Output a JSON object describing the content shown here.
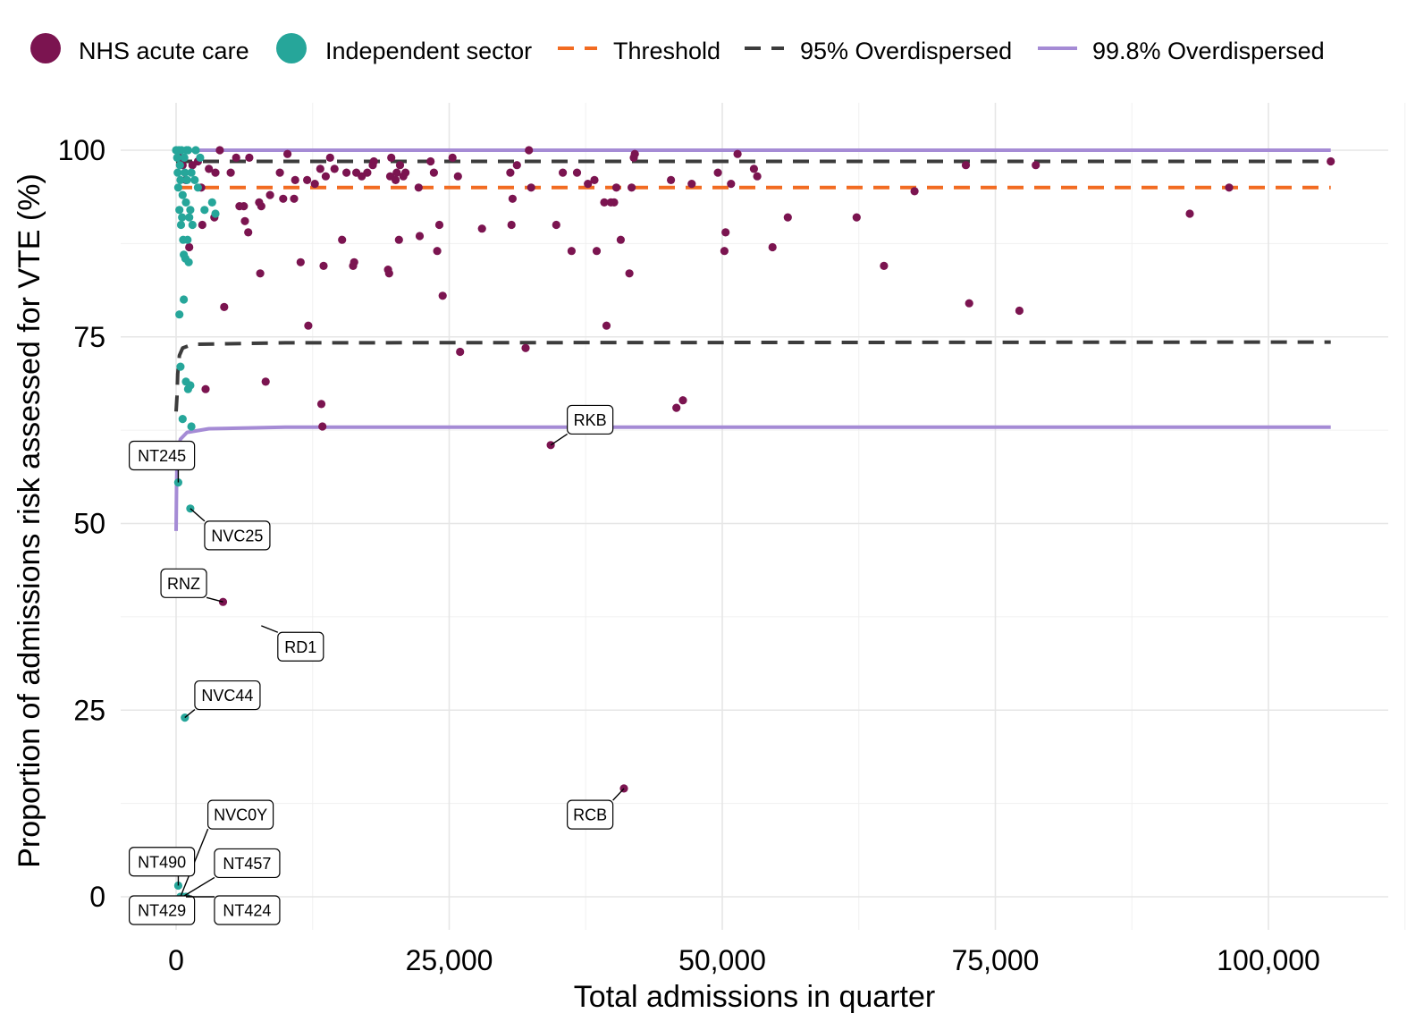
{
  "chart_data": {
    "type": "scatter",
    "xlabel": "Total admissions in quarter",
    "ylabel": "Proportion of admissions risk assessed for VTE (%)",
    "xlim": [
      -5000,
      110000
    ],
    "ylim": [
      -5,
      105
    ],
    "xticks": [
      0,
      25000,
      50000,
      75000,
      100000
    ],
    "xtick_labels": [
      "0",
      "25,000",
      "50,000",
      "75,000",
      "100,000"
    ],
    "yticks": [
      0,
      25,
      50,
      75,
      100
    ],
    "ytick_labels": [
      "0",
      "25",
      "50",
      "75",
      "100"
    ],
    "grid": true,
    "legend_position": "top",
    "legend": [
      {
        "key": "nhs",
        "label": "NHS acute care",
        "kind": "point",
        "color": "#7b1450"
      },
      {
        "key": "ind",
        "label": "Independent sector",
        "kind": "point",
        "color": "#26a69a"
      },
      {
        "key": "threshold",
        "label": "Threshold",
        "kind": "dashed",
        "color": "#f26b21"
      },
      {
        "key": "od95",
        "label": "95% Overdispersed",
        "kind": "dashed",
        "color": "#3c3c3c"
      },
      {
        "key": "od998",
        "label": "99.8% Overdispersed",
        "kind": "solid",
        "color": "#a58bd5"
      }
    ],
    "series": [
      {
        "key": "nhs",
        "color": "#7b1450",
        "points": [
          [
            300,
            99
          ],
          [
            600,
            98
          ],
          [
            900,
            96
          ],
          [
            1200,
            87
          ],
          [
            1500,
            98
          ],
          [
            2000,
            98.5
          ],
          [
            2300,
            95
          ],
          [
            2400,
            90
          ],
          [
            2700,
            68
          ],
          [
            3000,
            97.5
          ],
          [
            3500,
            91
          ],
          [
            3600,
            97
          ],
          [
            4000,
            100
          ],
          [
            4300,
            39.5
          ],
          [
            4400,
            79
          ],
          [
            5000,
            97
          ],
          [
            5500,
            99
          ],
          [
            5800,
            92.5
          ],
          [
            6200,
            92.5
          ],
          [
            6300,
            90.5
          ],
          [
            6600,
            89
          ],
          [
            6700,
            99
          ],
          [
            7600,
            93
          ],
          [
            7700,
            83.5
          ],
          [
            7800,
            92.5
          ],
          [
            8200,
            69
          ],
          [
            8600,
            94
          ],
          [
            9500,
            97
          ],
          [
            9800,
            93.5
          ],
          [
            10200,
            99.5
          ],
          [
            10800,
            93.5
          ],
          [
            10900,
            96
          ],
          [
            11400,
            85
          ],
          [
            12000,
            96
          ],
          [
            12100,
            76.5
          ],
          [
            12700,
            95.5
          ],
          [
            13200,
            97.5
          ],
          [
            13300,
            66
          ],
          [
            13400,
            63
          ],
          [
            13500,
            84.5
          ],
          [
            13700,
            96.5
          ],
          [
            14100,
            99
          ],
          [
            14500,
            97.5
          ],
          [
            15200,
            88
          ],
          [
            15600,
            97
          ],
          [
            16200,
            84.5
          ],
          [
            16300,
            85
          ],
          [
            16500,
            97
          ],
          [
            17000,
            96.5
          ],
          [
            17500,
            97
          ],
          [
            18000,
            98
          ],
          [
            18100,
            98.5
          ],
          [
            19400,
            84
          ],
          [
            19500,
            83.5
          ],
          [
            19600,
            96.5
          ],
          [
            19700,
            99
          ],
          [
            20100,
            96
          ],
          [
            20200,
            97
          ],
          [
            20400,
            88
          ],
          [
            20500,
            98
          ],
          [
            20800,
            96.5
          ],
          [
            21000,
            97
          ],
          [
            22200,
            95
          ],
          [
            22300,
            88.5
          ],
          [
            23300,
            98.5
          ],
          [
            23600,
            97
          ],
          [
            23900,
            86.5
          ],
          [
            24100,
            90
          ],
          [
            24400,
            80.5
          ],
          [
            25300,
            99
          ],
          [
            25800,
            96.5
          ],
          [
            26000,
            73
          ],
          [
            28000,
            89.5
          ],
          [
            30600,
            97
          ],
          [
            30700,
            90
          ],
          [
            30800,
            93.5
          ],
          [
            31200,
            98
          ],
          [
            32000,
            73.5
          ],
          [
            32300,
            100
          ],
          [
            32500,
            95
          ],
          [
            34300,
            60.5
          ],
          [
            34800,
            90
          ],
          [
            35400,
            97
          ],
          [
            36200,
            86.5
          ],
          [
            36700,
            97
          ],
          [
            37700,
            95.5
          ],
          [
            38300,
            96
          ],
          [
            38500,
            86.5
          ],
          [
            39200,
            93
          ],
          [
            39400,
            76.5
          ],
          [
            39800,
            93
          ],
          [
            40100,
            93
          ],
          [
            40300,
            95
          ],
          [
            40700,
            88
          ],
          [
            41000,
            14.5
          ],
          [
            41500,
            83.5
          ],
          [
            41700,
            95
          ],
          [
            41900,
            99
          ],
          [
            42000,
            99.5
          ],
          [
            45300,
            96
          ],
          [
            45800,
            65.5
          ],
          [
            46400,
            66.5
          ],
          [
            47200,
            95.5
          ],
          [
            49600,
            97
          ],
          [
            50200,
            86.5
          ],
          [
            50300,
            89
          ],
          [
            50800,
            95.5
          ],
          [
            51400,
            99.5
          ],
          [
            52900,
            97.5
          ],
          [
            53200,
            96.5
          ],
          [
            54600,
            87
          ],
          [
            56000,
            91
          ],
          [
            62300,
            91
          ],
          [
            64800,
            84.5
          ],
          [
            67600,
            94.5
          ],
          [
            72300,
            98
          ],
          [
            72600,
            79.5
          ],
          [
            77200,
            78.5
          ],
          [
            78700,
            98
          ],
          [
            92800,
            91.5
          ],
          [
            96400,
            95
          ],
          [
            105700,
            98.5
          ]
        ]
      },
      {
        "key": "ind",
        "color": "#26a69a",
        "points": [
          [
            0,
            100
          ],
          [
            100,
            99
          ],
          [
            150,
            97
          ],
          [
            200,
            95
          ],
          [
            250,
            100
          ],
          [
            300,
            92
          ],
          [
            350,
            98
          ],
          [
            400,
            96
          ],
          [
            450,
            90
          ],
          [
            500,
            100
          ],
          [
            550,
            91
          ],
          [
            600,
            94
          ],
          [
            650,
            88
          ],
          [
            700,
            86
          ],
          [
            750,
            99
          ],
          [
            800,
            97
          ],
          [
            850,
            85.5
          ],
          [
            900,
            93
          ],
          [
            950,
            100
          ],
          [
            1000,
            96
          ],
          [
            1050,
            88
          ],
          [
            1100,
            100
          ],
          [
            1150,
            85
          ],
          [
            1200,
            91
          ],
          [
            1300,
            92
          ],
          [
            1400,
            97
          ],
          [
            1500,
            90
          ],
          [
            1700,
            96
          ],
          [
            1800,
            100
          ],
          [
            2000,
            95
          ],
          [
            2200,
            99
          ],
          [
            2600,
            92
          ],
          [
            3300,
            93
          ],
          [
            3600,
            91.5
          ],
          [
            300,
            78
          ],
          [
            400,
            71
          ],
          [
            600,
            64
          ],
          [
            700,
            80
          ],
          [
            900,
            69
          ],
          [
            1100,
            68
          ],
          [
            1300,
            68.5
          ],
          [
            1400,
            63
          ],
          [
            200,
            55.5
          ],
          [
            1300,
            52
          ],
          [
            800,
            24
          ],
          [
            200,
            1.5
          ],
          [
            400,
            0
          ],
          [
            600,
            0
          ],
          [
            900,
            0
          ]
        ]
      }
    ],
    "lines": [
      {
        "key": "threshold",
        "color": "#f26b21",
        "dash": "dashed",
        "points": [
          [
            0,
            95
          ],
          [
            105700,
            95
          ]
        ]
      },
      {
        "key": "od95_upper",
        "color": "#3c3c3c",
        "dash": "dashed",
        "points": [
          [
            0,
            98.5
          ],
          [
            105700,
            98.5
          ]
        ]
      },
      {
        "key": "od95_lower",
        "color": "#3c3c3c",
        "dash": "dashed",
        "points": [
          [
            0,
            65
          ],
          [
            80,
            67
          ],
          [
            150,
            70
          ],
          [
            300,
            72.5
          ],
          [
            600,
            73.5
          ],
          [
            1500,
            74
          ],
          [
            10000,
            74.2
          ],
          [
            105700,
            74.3
          ]
        ]
      },
      {
        "key": "od998_upper",
        "color": "#a58bd5",
        "dash": "solid",
        "points": [
          [
            0,
            100
          ],
          [
            105700,
            100
          ]
        ]
      },
      {
        "key": "od998_lower",
        "color": "#a58bd5",
        "dash": "solid",
        "points": [
          [
            0,
            49
          ],
          [
            40,
            55
          ],
          [
            90,
            58.5
          ],
          [
            180,
            60
          ],
          [
            400,
            61.3
          ],
          [
            1000,
            62.2
          ],
          [
            3000,
            62.7
          ],
          [
            10000,
            62.9
          ],
          [
            105700,
            62.9
          ]
        ]
      }
    ],
    "annotations": [
      {
        "label": "RKB",
        "x": 34300,
        "y": 60.5,
        "lx": 37900,
        "ly": 63.9
      },
      {
        "label": "NT245",
        "x": 200,
        "y": 55.5,
        "lx": -1300,
        "ly": 59.1
      },
      {
        "label": "NVC25",
        "x": 1300,
        "y": 52,
        "lx": 5600,
        "ly": 48.4
      },
      {
        "label": "RNZ",
        "x": 4300,
        "y": 39.5,
        "lx": 700,
        "ly": 42.0
      },
      {
        "label": "RD1",
        "x": 7800,
        "y": 36.3,
        "lx": 11400,
        "ly": 33.5
      },
      {
        "label": "NVC44",
        "x": 800,
        "y": 24,
        "lx": 4700,
        "ly": 27.0
      },
      {
        "label": "RCB",
        "x": 41000,
        "y": 14.5,
        "lx": 37900,
        "ly": 11.0
      },
      {
        "label": "NVC0Y",
        "x": 400,
        "y": 0,
        "lx": 5900,
        "ly": 11.0
      },
      {
        "label": "NT490",
        "x": 200,
        "y": 1.5,
        "lx": -1300,
        "ly": 4.7
      },
      {
        "label": "NT457",
        "x": 600,
        "y": 0,
        "lx": 6500,
        "ly": 4.5
      },
      {
        "label": "NT429",
        "x": 400,
        "y": 0,
        "lx": -1300,
        "ly": -1.8
      },
      {
        "label": "NT424",
        "x": 900,
        "y": 0,
        "lx": 6500,
        "ly": -1.8
      }
    ]
  }
}
